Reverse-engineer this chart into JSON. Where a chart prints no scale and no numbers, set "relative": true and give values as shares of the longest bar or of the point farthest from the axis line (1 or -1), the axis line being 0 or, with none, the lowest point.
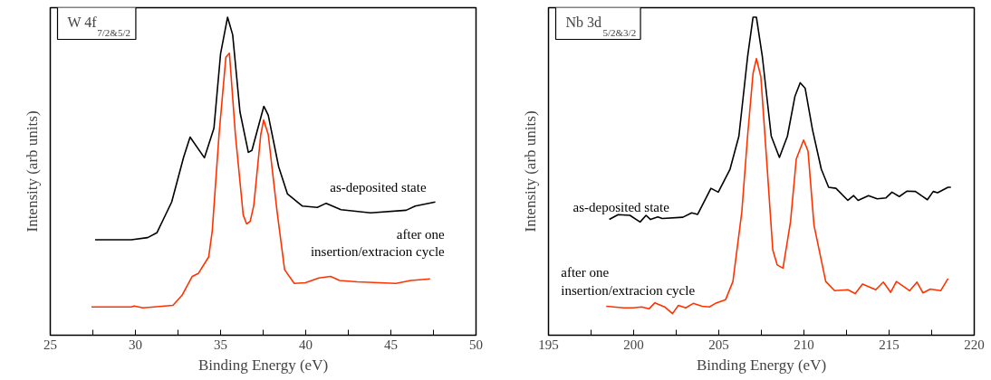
{
  "chart_data": [
    {
      "type": "line",
      "title": "W 4f$_{7/2&5/2}$",
      "xlabel": "Binding Energy (eV)",
      "ylabel": "Intensity (arb units)",
      "relative": true,
      "xlim": [
        25,
        50
      ],
      "xticks": [
        25,
        {
          "value": 27.5,
          "label": null
        },
        30,
        {
          "value": 32.5,
          "label": null
        },
        35,
        {
          "value": 37.5,
          "label": null
        },
        40,
        {
          "value": 42.5,
          "label": null
        },
        45,
        {
          "value": 47.5,
          "label": null
        },
        50
      ],
      "grid": false,
      "legend": false,
      "marker": "none",
      "line_style": "solid",
      "series": [
        {
          "name": "as-deposited state",
          "color": "#000000",
          "x": [
            27.63,
            29.76,
            30.72,
            31.26,
            32.13,
            32.83,
            33.21,
            34.05,
            34.61,
            35.0,
            35.41,
            35.71,
            36.14,
            36.63,
            36.84,
            37.54,
            37.8,
            38.41,
            38.93,
            39.81,
            40.68,
            41.2,
            42.07,
            43.81,
            45.9,
            46.43,
            47.61
          ],
          "values": [
            0.3,
            0.3,
            0.307,
            0.322,
            0.419,
            0.56,
            0.623,
            0.558,
            0.651,
            0.885,
            1,
            0.945,
            0.702,
            0.575,
            0.581,
            0.72,
            0.692,
            0.53,
            0.444,
            0.406,
            0.402,
            0.415,
            0.395,
            0.385,
            0.393,
            0.406,
            0.419
          ]
        },
        {
          "name": "after one\ninsertion/extracion cycle",
          "color": "#ff3300",
          "x": [
            27.42,
            29.76,
            29.93,
            30.45,
            32.2,
            32.73,
            33.34,
            33.69,
            34.3,
            34.51,
            34.91,
            35.31,
            35.52,
            35.87,
            36.33,
            36.53,
            36.74,
            36.95,
            37.36,
            37.53,
            37.8,
            38.32,
            38.76,
            39.33,
            39.98,
            40.77,
            41.46,
            41.99,
            43.03,
            45.3,
            46.17,
            47.3
          ],
          "values": [
            0.089,
            0.089,
            0.092,
            0.086,
            0.094,
            0.125,
            0.185,
            0.194,
            0.246,
            0.327,
            0.631,
            0.874,
            0.887,
            0.631,
            0.378,
            0.35,
            0.358,
            0.408,
            0.631,
            0.677,
            0.631,
            0.388,
            0.206,
            0.163,
            0.165,
            0.18,
            0.185,
            0.172,
            0.168,
            0.163,
            0.172,
            0.177
          ]
        }
      ]
    },
    {
      "type": "line",
      "title": "Nb 3d$_{5/2&3/2}$",
      "xlabel": "Binding Energy (eV)",
      "ylabel": "Intensity (arb units)",
      "relative": true,
      "xlim": [
        195,
        220
      ],
      "xticks": [
        195,
        {
          "value": 197.5,
          "label": null
        },
        200,
        {
          "value": 202.5,
          "label": null
        },
        205,
        {
          "value": 207.5,
          "label": null
        },
        210,
        {
          "value": 212.5,
          "label": null
        },
        215,
        {
          "value": 217.5,
          "label": null
        },
        220
      ],
      "grid": false,
      "legend": false,
      "marker": "none",
      "line_style": "solid",
      "series": [
        {
          "name": "as-deposited state",
          "color": "#000000",
          "x": [
            198.57,
            199.09,
            199.78,
            200.38,
            200.73,
            200.99,
            201.42,
            201.68,
            202.89,
            203.41,
            203.76,
            204.54,
            204.97,
            205.66,
            206.18,
            206.69,
            207.01,
            207.21,
            207.56,
            208.08,
            208.56,
            209.03,
            209.47,
            209.78,
            210.07,
            210.5,
            211.02,
            211.45,
            211.88,
            212.58,
            212.92,
            213.18,
            213.79,
            214.3,
            214.82,
            215.17,
            215.6,
            216.04,
            216.55,
            217.25,
            217.59,
            217.85,
            218.46,
            218.63
          ],
          "values": [
            0.364,
            0.379,
            0.377,
            0.356,
            0.377,
            0.364,
            0.372,
            0.367,
            0.371,
            0.385,
            0.38,
            0.462,
            0.45,
            0.522,
            0.626,
            0.875,
            1,
            1,
            0.875,
            0.626,
            0.559,
            0.626,
            0.751,
            0.794,
            0.777,
            0.647,
            0.522,
            0.465,
            0.462,
            0.424,
            0.439,
            0.424,
            0.439,
            0.429,
            0.432,
            0.45,
            0.436,
            0.453,
            0.452,
            0.426,
            0.452,
            0.448,
            0.465,
            0.465
          ]
        },
        {
          "name": "after one\ninsertion/extracion cycle",
          "color": "#ff3300",
          "x": [
            198.39,
            199.43,
            199.95,
            200.47,
            200.9,
            201.25,
            201.85,
            202.28,
            202.63,
            203.06,
            203.5,
            204.02,
            204.45,
            204.8,
            205.4,
            205.83,
            206.35,
            206.69,
            207.01,
            207.21,
            207.47,
            207.82,
            208.17,
            208.43,
            208.77,
            209.21,
            209.55,
            209.98,
            210.24,
            210.59,
            211.28,
            211.8,
            212.58,
            213.01,
            213.44,
            214.22,
            214.66,
            215.09,
            215.43,
            216.21,
            216.64,
            216.99,
            217.42,
            218.03,
            218.46
          ],
          "values": [
            0.091,
            0.086,
            0.086,
            0.089,
            0.083,
            0.102,
            0.088,
            0.068,
            0.094,
            0.086,
            0.1,
            0.091,
            0.089,
            0.1,
            0.112,
            0.169,
            0.387,
            0.626,
            0.823,
            0.87,
            0.813,
            0.543,
            0.268,
            0.221,
            0.211,
            0.356,
            0.554,
            0.614,
            0.579,
            0.346,
            0.169,
            0.14,
            0.143,
            0.131,
            0.161,
            0.143,
            0.167,
            0.135,
            0.169,
            0.14,
            0.167,
            0.133,
            0.145,
            0.14,
            0.178
          ]
        }
      ]
    }
  ]
}
